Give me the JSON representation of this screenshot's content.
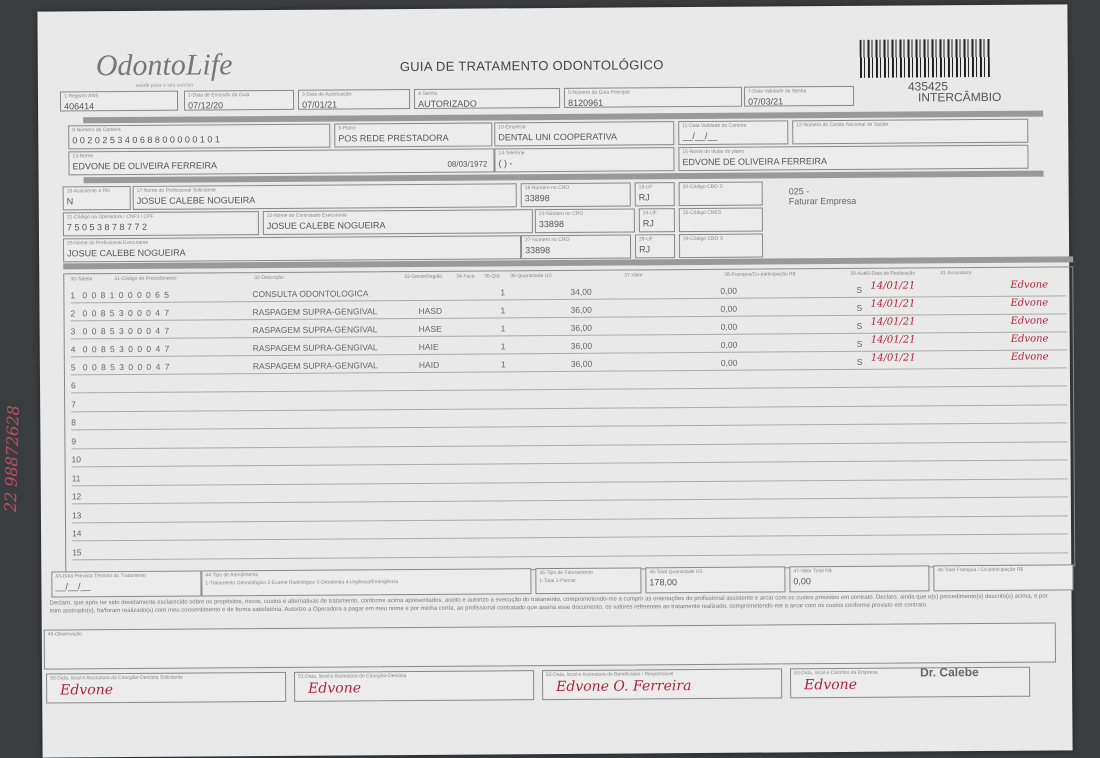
{
  "header": {
    "logo": "OdontoLife",
    "tagline": "saúde para o seu sorriso",
    "title": "GUIA DE TRATAMENTO ODONTOLÓGICO",
    "guide_number": "435425",
    "guide_type": "INTERCÂMBIO"
  },
  "fields": [
    {
      "label": "1-Registro ANS",
      "value": "406414"
    },
    {
      "label": "2-Data de Emissão da Guia",
      "value": "07/12/20"
    },
    {
      "label": "3-Data de Autorização",
      "value": "07/01/21"
    },
    {
      "label": "4-Senha",
      "value": "AUTORIZADO"
    },
    {
      "label": "5-Número da Guia Principal",
      "value": "8120961"
    },
    {
      "label": "7-Data Validade da Senha",
      "value": "07/03/21"
    },
    {
      "label": "8-Número da Carteira",
      "value": "0 0 2 0 2 5 3 4 0 6 8 8 0 0 0 0 0 1 0 1"
    },
    {
      "label": "9-Plano",
      "value": "POS REDE PRESTADORA"
    },
    {
      "label": "10-Empresa",
      "value": "DENTAL UNI  COOPERATIVA"
    },
    {
      "label": "11-Data Validade da Carteira",
      "value": "__/__/__"
    },
    {
      "label": "12-Número do Cartão Nacional de Saúde",
      "value": ""
    },
    {
      "label": "13-Nome",
      "value": "EDVONE DE OLIVEIRA FERREIRA",
      "extra": "08/03/1972"
    },
    {
      "label": "14-Telefone",
      "value": "(  )      -     "
    },
    {
      "label": "15-Nome do titular do plano",
      "value": "EDVONE DE OLIVEIRA FERREIRA"
    },
    {
      "label": "16-Assistente a RN",
      "value": "N"
    },
    {
      "label": "17-Nome do Profissional Solicitante",
      "value": "JOSUE CALEBE NOGUEIRA"
    },
    {
      "label": "18-Número no CRO",
      "value": "33898"
    },
    {
      "label": "19-UF",
      "value": "RJ"
    },
    {
      "label": "20-Código CBO S",
      "value": ""
    },
    {
      "label": "21-Código na Operadora / CNPJ / CPF",
      "value": "7 5 0 5 3 8 7 8 7 7 2"
    },
    {
      "label": "22-Nome do Contratado Executante",
      "value": "JOSUE CALEBE NOGUEIRA"
    },
    {
      "label": "23-Número no CRO",
      "value": "33898"
    },
    {
      "label": "24-UF",
      "value": "RJ"
    },
    {
      "label": "25-Código CNES",
      "value": ""
    },
    {
      "label": "26-Nome do Profissional Executante",
      "value": "JOSUE CALEBE NOGUEIRA"
    },
    {
      "label": "27-Número no CRO",
      "value": "33898"
    },
    {
      "label": "28-UF",
      "value": "RJ"
    },
    {
      "label": "29-Código CBO S",
      "value": ""
    }
  ],
  "billing_note": {
    "code": "025 -",
    "text": "Faturar Empresa"
  },
  "table": {
    "headers": [
      "30-Tabela",
      "31-Código do Procedimento",
      "32-Descrição",
      "33-Dente/Região",
      "34-Face",
      "35-Qtd",
      "36-Quantidade US",
      "37-Valor",
      "38-Franquia/Co-participação R$",
      "39-Aut",
      "40-Data de Realização",
      "41-Assinatura"
    ],
    "rows": [
      {
        "n": "1",
        "code": "0 0 8 1 0 0 0 0 6 5",
        "desc": "CONSULTA ODONTOLOGICA",
        "tooth": "",
        "qty": "1",
        "us": "34,00",
        "franq": "0,00",
        "aut": "S",
        "date": "14/01/21",
        "sig": "Edvone"
      },
      {
        "n": "2",
        "code": "0 0 8 5 3 0 0 0 4 7",
        "desc": "RASPAGEM SUPRA-GENGIVAL",
        "tooth": "HASD",
        "qty": "1",
        "us": "36,00",
        "franq": "0,00",
        "aut": "S",
        "date": "14/01/21",
        "sig": "Edvone"
      },
      {
        "n": "3",
        "code": "0 0 8 5 3 0 0 0 4 7",
        "desc": "RASPAGEM SUPRA-GENGIVAL",
        "tooth": "HASE",
        "qty": "1",
        "us": "36,00",
        "franq": "0,00",
        "aut": "S",
        "date": "14/01/21",
        "sig": "Edvone"
      },
      {
        "n": "4",
        "code": "0 0 8 5 3 0 0 0 4 7",
        "desc": "RASPAGEM SUPRA-GENGIVAL",
        "tooth": "HAIE",
        "qty": "1",
        "us": "36,00",
        "franq": "0,00",
        "aut": "S",
        "date": "14/01/21",
        "sig": "Edvone"
      },
      {
        "n": "5",
        "code": "0 0 8 5 3 0 0 0 4 7",
        "desc": "RASPAGEM SUPRA-GENGIVAL",
        "tooth": "HAID",
        "qty": "1",
        "us": "36,00",
        "franq": "0,00",
        "aut": "S",
        "date": "14/01/21",
        "sig": "Edvone"
      }
    ],
    "empty_rows": [
      "6",
      "7",
      "8",
      "9",
      "10",
      "11",
      "12",
      "13",
      "14",
      "15"
    ]
  },
  "totals": [
    {
      "label": "43-Data Prevista Término do Tratamento",
      "value": "__/__/__"
    },
    {
      "label": "44-Tipo de Atendimento",
      "value": "1-Tratamento Odontológico 2-Exame Radiológico 3-Ortodontia 4-Urgência/Emergência"
    },
    {
      "label": "45-Tipo de Faturamento",
      "value": "1-Total 2-Parcial"
    },
    {
      "label": "46-Total Quantidade US",
      "value": "178,00"
    },
    {
      "label": "47-Valor Total R$",
      "value": "0,00"
    },
    {
      "label": "48-Total Franquia / Co-participação R$",
      "value": ""
    }
  ],
  "declaration": "Declaro, que após ter sido devidamente esclarecido sobre os propósitos, riscos, custos e alternativas de tratamento, conforme acima apresentados, aceito e autorizo a execução do tratamento, comprometendo-me a cumprir as orientações do profissional assistente e arcar com os custos previstos em contrato. Declaro, ainda que o(s) procedimento(s) descrito(s) acima, e por mim assinado(s), foi/foram realizado(s) com meu consentimento e de forma satisfatória. Autorizo a Operadora a pagar em meu nome e por minha conta, ao profissional contratado que assina esse documento, os valores referentes ao tratamento realizado, comprometendo-me a arcar com os custos conforme previsto em contrato.",
  "observation_label": "49-Observação",
  "signatures": [
    {
      "label": "50-Data, local e Assinatura do Cirurgião-Dentista Solicitante",
      "sig": "Edvone"
    },
    {
      "label": "51-Data, local e Assinatura do Cirurgião-Dentista",
      "sig": "Edvone"
    },
    {
      "label": "52-Data, local e Assinatura do Beneficiário / Responsável",
      "sig": "Edvone O. Ferreira"
    },
    {
      "label": "53-Data, local e Carimbo da Empresa",
      "sig": "Edvone"
    }
  ],
  "stamp": "Dr. Calebe",
  "handwritten_phone": "22 98872628",
  "colors": {
    "ink": "#b0243a",
    "paper": "#e9e9ea",
    "background": "#3a3d40"
  }
}
